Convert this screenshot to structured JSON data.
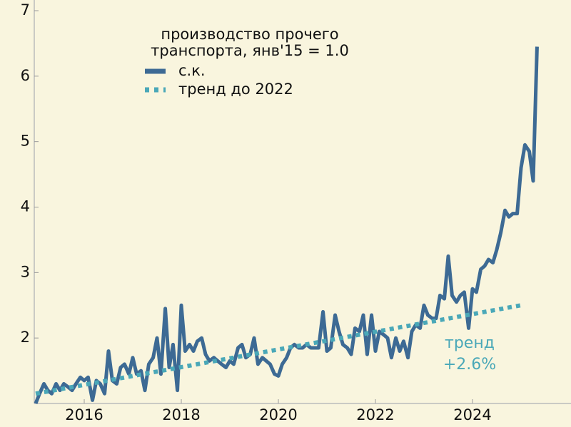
{
  "chart_data": {
    "type": "line",
    "title": [
      "производство прочего",
      "транспорта, янв'15 = 1.0"
    ],
    "annotation": [
      "тренд",
      "+2.6%"
    ],
    "xlim": [
      2015,
      2026
    ],
    "xticks": [
      2016,
      2018,
      2020,
      2022,
      2024
    ],
    "ylim": [
      1,
      7
    ],
    "yticks": [
      2,
      3,
      4,
      5,
      6,
      7
    ],
    "series": [
      {
        "name": "с.к.",
        "color": "#3d6a94",
        "style": "solid",
        "x": [
          2015.0,
          2015.08,
          2015.17,
          2015.25,
          2015.33,
          2015.42,
          2015.5,
          2015.58,
          2015.67,
          2015.75,
          2015.83,
          2015.92,
          2016.0,
          2016.08,
          2016.17,
          2016.25,
          2016.33,
          2016.42,
          2016.5,
          2016.58,
          2016.67,
          2016.75,
          2016.83,
          2016.92,
          2017.0,
          2017.08,
          2017.17,
          2017.25,
          2017.33,
          2017.42,
          2017.5,
          2017.58,
          2017.67,
          2017.75,
          2017.83,
          2017.92,
          2018.0,
          2018.08,
          2018.17,
          2018.25,
          2018.33,
          2018.42,
          2018.5,
          2018.58,
          2018.67,
          2018.75,
          2018.83,
          2018.92,
          2019.0,
          2019.08,
          2019.17,
          2019.25,
          2019.33,
          2019.42,
          2019.5,
          2019.58,
          2019.67,
          2019.75,
          2019.83,
          2019.92,
          2020.0,
          2020.08,
          2020.17,
          2020.25,
          2020.33,
          2020.42,
          2020.5,
          2020.58,
          2020.67,
          2020.75,
          2020.83,
          2020.92,
          2021.0,
          2021.08,
          2021.17,
          2021.25,
          2021.33,
          2021.42,
          2021.5,
          2021.58,
          2021.67,
          2021.75,
          2021.83,
          2021.92,
          2022.0,
          2022.08,
          2022.17,
          2022.25,
          2022.33,
          2022.42,
          2022.5,
          2022.58,
          2022.67,
          2022.75,
          2022.83,
          2022.92,
          2023.0,
          2023.08,
          2023.17,
          2023.25,
          2023.33,
          2023.42,
          2023.5,
          2023.58,
          2023.67,
          2023.75,
          2023.83,
          2023.92,
          2024.0,
          2024.08,
          2024.17,
          2024.25,
          2024.33,
          2024.42,
          2024.5,
          2024.58,
          2024.67,
          2024.75,
          2024.83,
          2024.92,
          2025.0,
          2025.08,
          2025.17,
          2025.25,
          2025.33
        ],
        "values": [
          1.0,
          1.15,
          1.3,
          1.2,
          1.15,
          1.3,
          1.2,
          1.3,
          1.25,
          1.2,
          1.3,
          1.4,
          1.35,
          1.4,
          1.05,
          1.35,
          1.3,
          1.15,
          1.8,
          1.35,
          1.3,
          1.55,
          1.6,
          1.45,
          1.7,
          1.45,
          1.5,
          1.2,
          1.6,
          1.7,
          2.0,
          1.45,
          2.45,
          1.55,
          1.9,
          1.2,
          2.5,
          1.8,
          1.9,
          1.8,
          1.95,
          2.0,
          1.75,
          1.65,
          1.7,
          1.65,
          1.6,
          1.55,
          1.65,
          1.6,
          1.85,
          1.9,
          1.7,
          1.75,
          2.0,
          1.6,
          1.7,
          1.65,
          1.6,
          1.45,
          1.42,
          1.6,
          1.7,
          1.85,
          1.9,
          1.85,
          1.85,
          1.9,
          1.85,
          1.85,
          1.85,
          2.4,
          1.8,
          1.85,
          2.35,
          2.1,
          1.9,
          1.85,
          1.75,
          2.15,
          2.1,
          2.35,
          1.75,
          2.35,
          1.8,
          2.1,
          2.05,
          2.0,
          1.7,
          2.0,
          1.8,
          1.95,
          1.7,
          2.1,
          2.2,
          2.15,
          2.5,
          2.35,
          2.3,
          2.3,
          2.65,
          2.6,
          3.25,
          2.65,
          2.55,
          2.65,
          2.7,
          2.15,
          2.75,
          2.7,
          3.05,
          3.1,
          3.2,
          3.15,
          3.35,
          3.6,
          3.95,
          3.85,
          3.9,
          3.9,
          4.6,
          4.95,
          4.85,
          4.4,
          6.45
        ]
      },
      {
        "name": "тренд до 2022",
        "color": "#4aa8b8",
        "style": "dotted",
        "x": [
          2015,
          2025
        ],
        "values": [
          1.15,
          2.5
        ]
      }
    ]
  }
}
